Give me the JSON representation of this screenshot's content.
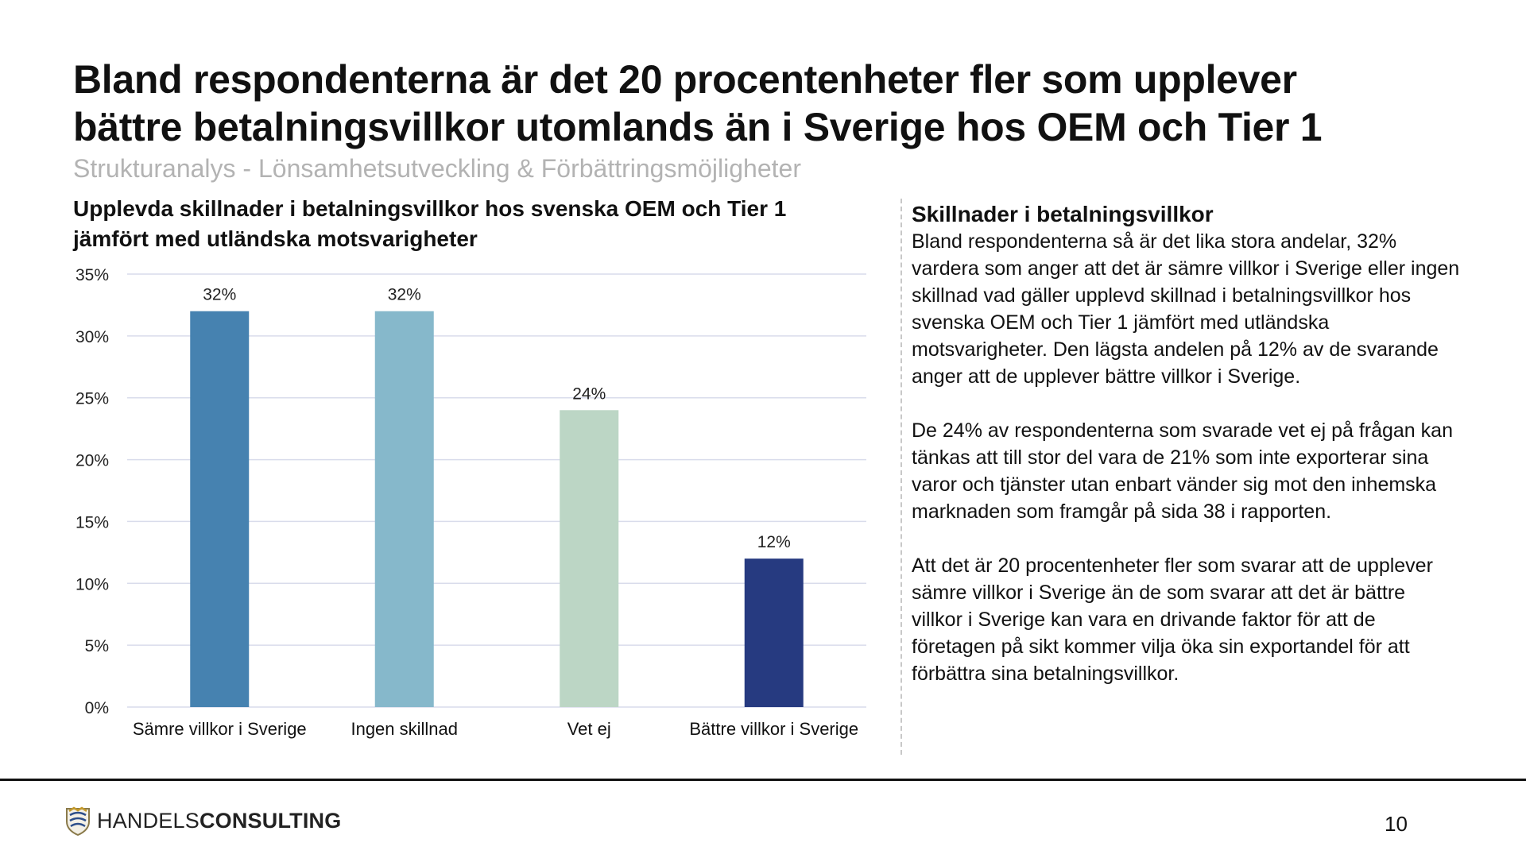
{
  "header": {
    "title_line1": "Bland respondenterna är det 20 procentenheter fler som upplever",
    "title_line2": "bättre betalningsvillkor utomlands än i Sverige hos OEM och Tier 1",
    "subtitle": "Strukturanalys - Lönsamhetsutveckling & Förbättringsmöjligheter"
  },
  "chart_data": {
    "type": "bar",
    "title_line1": "Upplevda skillnader i betalningsvillkor hos svenska OEM och Tier 1",
    "title_line2": "jämfört med utländska motsvarigheter",
    "categories": [
      "Sämre villkor i Sverige",
      "Ingen skillnad",
      "Vet ej",
      "Bättre villkor i Sverige"
    ],
    "values": [
      32,
      32,
      24,
      12
    ],
    "data_labels": [
      "32%",
      "32%",
      "24%",
      "12%"
    ],
    "colors": [
      "#4682b0",
      "#86b8cb",
      "#bcd6c5",
      "#263a80"
    ],
    "ylim": [
      0,
      35
    ],
    "yticks": [
      0,
      5,
      10,
      15,
      20,
      25,
      30,
      35
    ],
    "ytick_labels": [
      "0%",
      "5%",
      "10%",
      "15%",
      "20%",
      "25%",
      "30%",
      "35%"
    ],
    "grid": true,
    "legend": "none"
  },
  "side": {
    "heading": "Skillnader i betalningsvillkor",
    "paragraphs": [
      "Bland respondenterna så är det lika stora andelar, 32% vardera som anger att det är sämre villkor i Sverige eller ingen skillnad vad gäller upplevd skillnad i betalningsvillkor hos svenska OEM och Tier 1 jämfört med utländska motsvarigheter. Den lägsta andelen på 12% av de svarande anger att de upplever bättre villkor i Sverige.",
      "De 24% av respondenterna som svarade vet ej på frågan kan tänkas att till stor del vara de 21% som inte exporterar sina varor och tjänster utan enbart vänder sig mot den inhemska marknaden som framgår på sida 38 i rapporten.",
      "Att det är 20 procentenheter fler som svarar att de upplever sämre villkor i Sverige än de som svarar att det är bättre villkor i Sverige kan vara en drivande faktor för att de företagen på sikt kommer vilja öka sin exportandel för att förbättra sina betalningsvillkor."
    ]
  },
  "footer": {
    "logo_light": "HANDELS",
    "logo_bold": "CONSULTING",
    "page_number": "10"
  }
}
